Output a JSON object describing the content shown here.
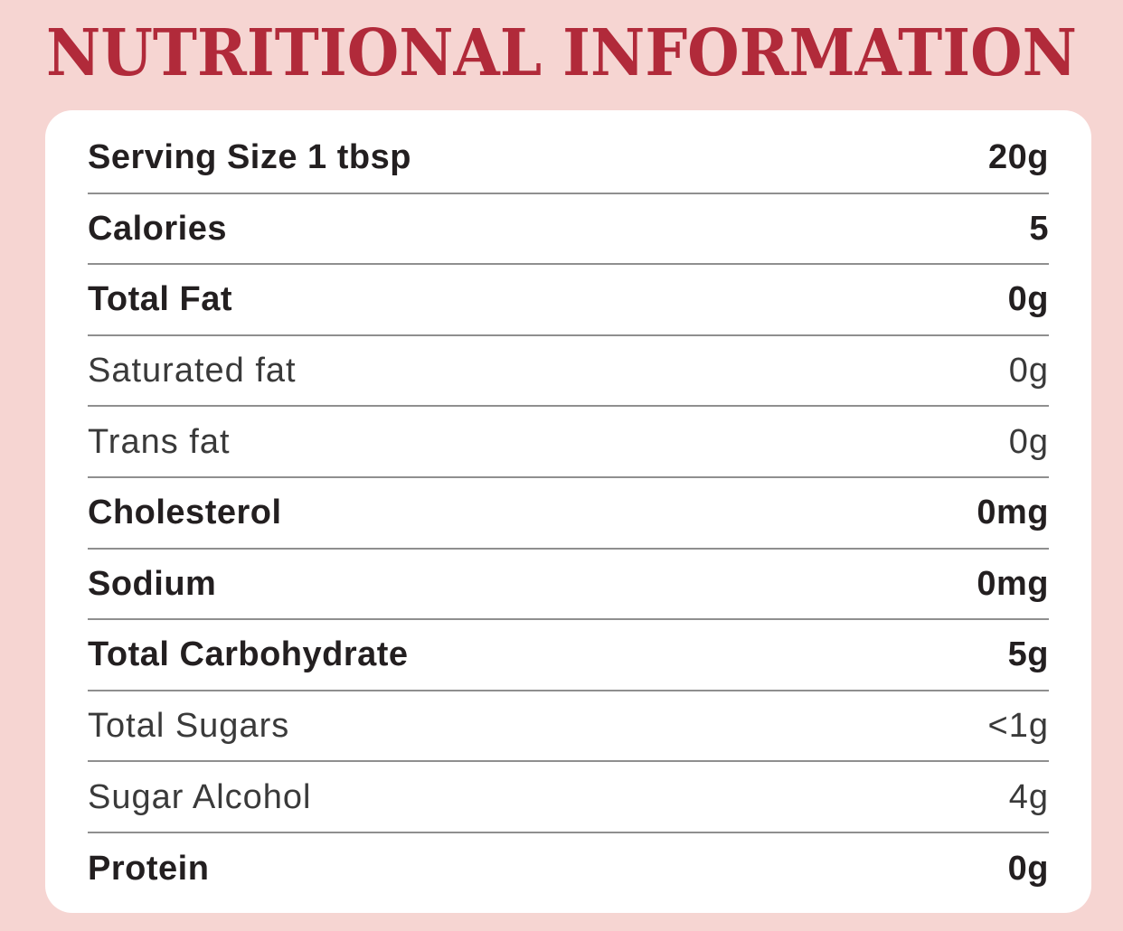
{
  "title": "NUTRITIONAL INFORMATION",
  "colors": {
    "background": "#f6d5d2",
    "accent_red": "#b12a3a",
    "card_background": "#ffffff",
    "text_bold": "#231f20",
    "text_light": "#3a3a3a",
    "divider": "#8f8f8f"
  },
  "table": {
    "rows": [
      {
        "label": "Serving Size 1 tbsp",
        "value": "20g",
        "emphasis": "bold"
      },
      {
        "label": "Calories",
        "value": "5",
        "emphasis": "bold"
      },
      {
        "label": "Total Fat",
        "value": "0g",
        "emphasis": "bold"
      },
      {
        "label": "Saturated fat",
        "value": "0g",
        "emphasis": "light"
      },
      {
        "label": "Trans fat",
        "value": "0g",
        "emphasis": "light"
      },
      {
        "label": "Cholesterol",
        "value": "0mg",
        "emphasis": "bold"
      },
      {
        "label": "Sodium",
        "value": "0mg",
        "emphasis": "bold"
      },
      {
        "label": "Total Carbohydrate",
        "value": "5g",
        "emphasis": "bold"
      },
      {
        "label": "Total Sugars",
        "value": "<1g",
        "emphasis": "light"
      },
      {
        "label": "Sugar Alcohol",
        "value": "4g",
        "emphasis": "light"
      },
      {
        "label": "Protein",
        "value": "0g",
        "emphasis": "bold"
      }
    ]
  }
}
